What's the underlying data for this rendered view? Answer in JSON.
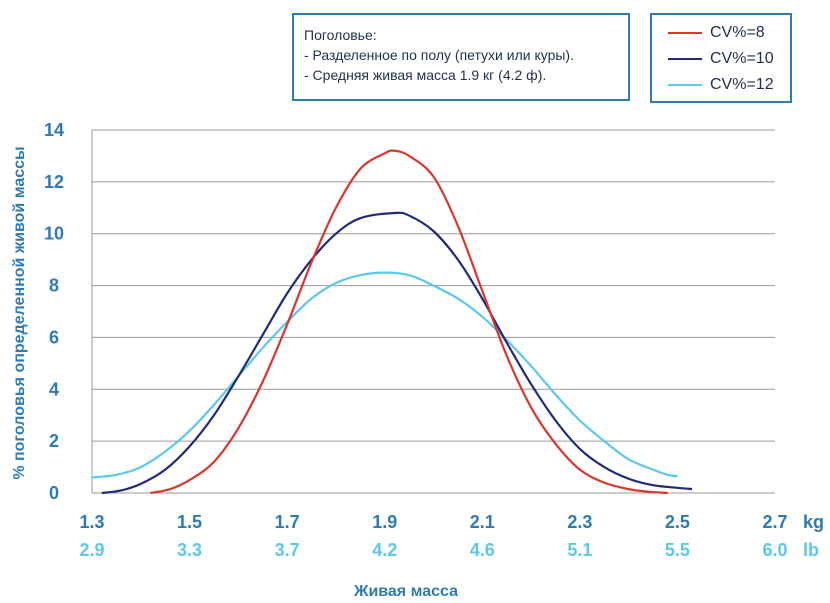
{
  "info_box": {
    "lines": [
      "Поголовье:",
      "- Разделенное по полу (петухи или куры).",
      "- Средняя живая масса 1.9 кг (4.2 ф)."
    ]
  },
  "colors": {
    "axis_text": "#2c7bb6",
    "lb_text": "#5bc8ec",
    "grid": "#9a9a9a"
  },
  "chart_data": {
    "type": "line",
    "title": "",
    "xlabel": "Живая масса",
    "ylabel": "% поголовья определенной живой массы",
    "xlim": [
      1.3,
      2.7
    ],
    "ylim": [
      0,
      14
    ],
    "yticks": [
      "0",
      "2",
      "4",
      "6",
      "8",
      "10",
      "12",
      "14"
    ],
    "xticks_kg": [
      "1.3",
      "1.5",
      "1.7",
      "1.9",
      "2.1",
      "2.3",
      "2.5",
      "2.7"
    ],
    "xticks_lb": [
      "2.9",
      "3.3",
      "3.7",
      "4.2",
      "4.6",
      "5.1",
      "5.5",
      "6.0"
    ],
    "x_unit_kg": "kg",
    "x_unit_lb": "lb",
    "grid": "horizontal",
    "legend_position": "top-right",
    "series": [
      {
        "name": "CV%=8",
        "color": "#d9372b",
        "points": [
          [
            1.42,
            0.0
          ],
          [
            1.46,
            0.15
          ],
          [
            1.5,
            0.5
          ],
          [
            1.55,
            1.2
          ],
          [
            1.6,
            2.5
          ],
          [
            1.65,
            4.3
          ],
          [
            1.7,
            6.5
          ],
          [
            1.75,
            8.9
          ],
          [
            1.8,
            11.0
          ],
          [
            1.85,
            12.5
          ],
          [
            1.9,
            13.1
          ],
          [
            1.92,
            13.2
          ],
          [
            1.95,
            13.0
          ],
          [
            2.0,
            12.2
          ],
          [
            2.05,
            10.3
          ],
          [
            2.1,
            7.8
          ],
          [
            2.15,
            5.3
          ],
          [
            2.2,
            3.3
          ],
          [
            2.25,
            1.9
          ],
          [
            2.3,
            0.9
          ],
          [
            2.35,
            0.4
          ],
          [
            2.4,
            0.15
          ],
          [
            2.44,
            0.05
          ],
          [
            2.48,
            0.0
          ]
        ]
      },
      {
        "name": "CV%=10",
        "color": "#1f2a7a",
        "points": [
          [
            1.32,
            0.0
          ],
          [
            1.36,
            0.1
          ],
          [
            1.4,
            0.35
          ],
          [
            1.45,
            0.9
          ],
          [
            1.5,
            1.8
          ],
          [
            1.55,
            3.0
          ],
          [
            1.6,
            4.5
          ],
          [
            1.65,
            6.1
          ],
          [
            1.7,
            7.7
          ],
          [
            1.75,
            9.0
          ],
          [
            1.8,
            10.0
          ],
          [
            1.85,
            10.6
          ],
          [
            1.92,
            10.8
          ],
          [
            1.95,
            10.7
          ],
          [
            2.0,
            10.1
          ],
          [
            2.05,
            9.0
          ],
          [
            2.1,
            7.5
          ],
          [
            2.15,
            5.8
          ],
          [
            2.2,
            4.2
          ],
          [
            2.25,
            2.8
          ],
          [
            2.3,
            1.7
          ],
          [
            2.35,
            1.0
          ],
          [
            2.4,
            0.55
          ],
          [
            2.45,
            0.3
          ],
          [
            2.5,
            0.2
          ],
          [
            2.53,
            0.15
          ]
        ]
      },
      {
        "name": "CV%=12",
        "color": "#5bc8ec",
        "points": [
          [
            1.3,
            0.6
          ],
          [
            1.35,
            0.7
          ],
          [
            1.4,
            1.0
          ],
          [
            1.45,
            1.6
          ],
          [
            1.5,
            2.4
          ],
          [
            1.55,
            3.4
          ],
          [
            1.6,
            4.5
          ],
          [
            1.65,
            5.6
          ],
          [
            1.7,
            6.6
          ],
          [
            1.75,
            7.5
          ],
          [
            1.8,
            8.1
          ],
          [
            1.85,
            8.4
          ],
          [
            1.9,
            8.5
          ],
          [
            1.95,
            8.4
          ],
          [
            2.0,
            8.0
          ],
          [
            2.05,
            7.5
          ],
          [
            2.1,
            6.8
          ],
          [
            2.15,
            5.9
          ],
          [
            2.2,
            4.9
          ],
          [
            2.25,
            3.8
          ],
          [
            2.3,
            2.8
          ],
          [
            2.35,
            2.0
          ],
          [
            2.4,
            1.3
          ],
          [
            2.45,
            0.9
          ],
          [
            2.48,
            0.7
          ],
          [
            2.5,
            0.65
          ]
        ]
      }
    ]
  }
}
